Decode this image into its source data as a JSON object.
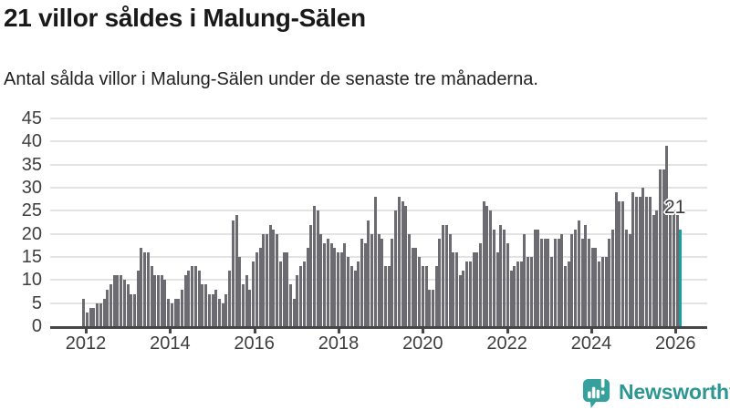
{
  "header": {
    "title": "21 villor såldes i Malung-Sälen",
    "subtitle": "Antal sålda villor i Malung-Sälen under de senaste tre månaderna."
  },
  "chart_data": {
    "type": "bar",
    "title": "21 villor såldes i Malung-Sälen",
    "subtitle": "Antal sålda villor i Malung-Sälen under de senaste tre månaderna.",
    "xlabel": "",
    "ylabel": "",
    "x_tick_labels": [
      "2012",
      "2014",
      "2016",
      "2018",
      "2020",
      "2022",
      "2024",
      "2026"
    ],
    "y_ticks": [
      0,
      5,
      10,
      15,
      20,
      25,
      30,
      35,
      40,
      45
    ],
    "ylim": [
      0,
      45
    ],
    "x_range": "late 2011 to early 2026, monthly (rolling three-month totals)",
    "grid": "horizontal gridlines on, white background",
    "bar_color": "#6b6b71",
    "values": [
      6,
      3,
      4,
      4,
      5,
      5,
      6,
      8,
      9,
      11,
      11,
      11,
      10,
      9,
      7,
      7,
      12,
      17,
      16,
      16,
      13,
      11,
      11,
      11,
      10,
      6,
      5,
      6,
      6,
      8,
      11,
      12,
      13,
      13,
      12,
      9,
      9,
      7,
      7,
      8,
      6,
      5,
      7,
      12,
      23,
      24,
      15,
      9,
      11,
      8,
      14,
      16,
      17,
      20,
      20,
      22,
      21,
      20,
      14,
      16,
      16,
      9,
      6,
      11,
      13,
      14,
      17,
      22,
      26,
      25,
      20,
      18,
      19,
      18,
      17,
      16,
      16,
      18,
      15,
      13,
      12,
      14,
      19,
      18,
      23,
      20,
      28,
      20,
      19,
      13,
      13,
      19,
      25,
      28,
      27,
      26,
      20,
      17,
      17,
      15,
      13,
      13,
      8,
      8,
      13,
      19,
      22,
      22,
      20,
      16,
      16,
      11,
      12,
      14,
      14,
      16,
      16,
      18,
      27,
      26,
      25,
      21,
      16,
      22,
      21,
      18,
      12,
      13,
      14,
      14,
      20,
      15,
      15,
      21,
      21,
      19,
      19,
      19,
      15,
      19,
      19,
      20,
      13,
      14,
      20,
      21,
      23,
      19,
      22,
      19,
      17,
      17,
      14,
      15,
      15,
      19,
      21,
      29,
      27,
      27,
      21,
      20,
      29,
      28,
      28,
      30,
      28,
      28,
      24,
      25,
      34,
      34,
      39,
      27,
      25,
      24,
      21
    ],
    "highlight": {
      "position": "last-bar",
      "value": 21,
      "label": "21",
      "color": "#199f9f"
    }
  },
  "branding": {
    "logo_text": "Newsworthy",
    "logo_color": "#2d9693",
    "icon": "newsworthy-speech-bubble-bar-chart-icon",
    "icon_color": "#35a09c"
  }
}
